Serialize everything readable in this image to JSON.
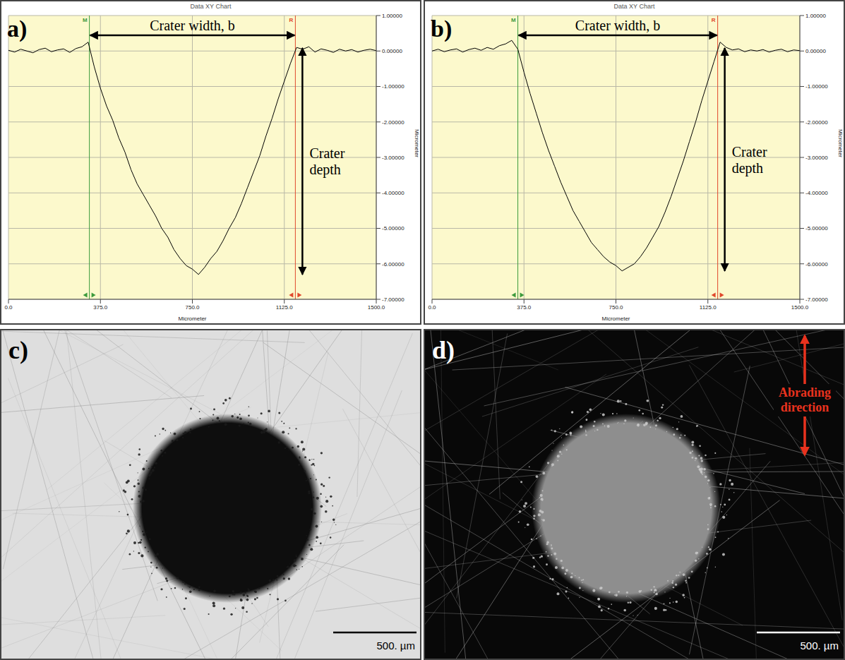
{
  "chart_data": [
    {
      "type": "line",
      "panel": "a)",
      "title": "Data XY Chart",
      "x_label": "Micrometer",
      "y_label": "Micrometer",
      "annotations": [
        "Crater width, b",
        "Crater depth"
      ],
      "x": [
        0,
        25,
        50,
        75,
        100,
        125,
        150,
        175,
        200,
        225,
        250,
        275,
        300,
        325,
        350,
        375,
        400,
        425,
        450,
        475,
        500,
        525,
        550,
        575,
        600,
        625,
        650,
        675,
        700,
        725,
        750,
        775,
        800,
        825,
        850,
        875,
        900,
        925,
        950,
        975,
        1000,
        1025,
        1050,
        1075,
        1100,
        1125,
        1150,
        1175,
        1200,
        1225,
        1250,
        1275,
        1300,
        1325,
        1350,
        1375,
        1400,
        1425,
        1450,
        1475,
        1500
      ],
      "values": [
        0.02,
        -0.03,
        0.05,
        0.0,
        -0.05,
        0.04,
        0.08,
        -0.02,
        0.03,
        0.06,
        -0.04,
        0.07,
        0.12,
        0.25,
        -0.45,
        -1.05,
        -1.55,
        -1.95,
        -2.45,
        -2.85,
        -3.35,
        -3.75,
        -4.05,
        -4.35,
        -4.65,
        -5.0,
        -5.25,
        -5.6,
        -5.85,
        -6.05,
        -6.15,
        -6.3,
        -6.1,
        -5.85,
        -5.65,
        -5.35,
        -5.0,
        -4.7,
        -4.3,
        -3.85,
        -3.4,
        -2.95,
        -2.4,
        -1.9,
        -1.35,
        -0.85,
        -0.35,
        0.1,
        0.05,
        0.12,
        -0.03,
        0.06,
        0.02,
        -0.04,
        0.05,
        0.0,
        0.04,
        -0.03,
        0.02,
        0.05,
        0.01
      ],
      "color": "#000000",
      "xlim": [
        0,
        1500
      ],
      "xticks": [
        {
          "value": 0,
          "label": "0.0"
        },
        {
          "value": 375,
          "label": "375.0"
        },
        {
          "value": 750,
          "label": "750.0"
        },
        {
          "value": 1125,
          "label": "1125.0"
        },
        {
          "value": 1500,
          "label": "1500.0"
        }
      ],
      "ylim": [
        -7,
        1
      ],
      "yticks": [
        {
          "value": 1,
          "label": "1.00000"
        },
        {
          "value": 0,
          "label": "0.00000"
        },
        {
          "value": -1,
          "label": "-1.00000"
        },
        {
          "value": -2,
          "label": "-2.00000"
        },
        {
          "value": -3,
          "label": "-3.00000"
        },
        {
          "value": -4,
          "label": "-4.00000"
        },
        {
          "value": -5,
          "label": "-5.00000"
        },
        {
          "value": -6,
          "label": "-6.00000"
        },
        {
          "value": -7,
          "label": "-7.00000"
        }
      ],
      "grid": true,
      "cursors": [
        {
          "label": "M",
          "x": 330,
          "color": "#3c9a3c"
        },
        {
          "label": "R",
          "x": 1170,
          "color": "#e0482c"
        }
      ]
    },
    {
      "type": "line",
      "panel": "b)",
      "title": "Data XY Chart",
      "x_label": "Micrometer",
      "y_label": "Micrometer",
      "annotations": [
        "Crater width, b",
        "Crater depth"
      ],
      "x": [
        0,
        25,
        50,
        75,
        100,
        125,
        150,
        175,
        200,
        225,
        250,
        275,
        300,
        325,
        350,
        375,
        400,
        425,
        450,
        475,
        500,
        525,
        550,
        575,
        600,
        625,
        650,
        675,
        700,
        725,
        750,
        775,
        800,
        825,
        850,
        875,
        900,
        925,
        950,
        975,
        1000,
        1025,
        1050,
        1075,
        1100,
        1125,
        1150,
        1175,
        1200,
        1225,
        1250,
        1275,
        1300,
        1325,
        1350,
        1375,
        1400,
        1425,
        1450,
        1475,
        1500
      ],
      "values": [
        0.0,
        0.05,
        -0.02,
        0.03,
        0.06,
        -0.03,
        0.04,
        0.08,
        0.02,
        0.1,
        0.05,
        0.15,
        0.2,
        0.3,
        0.05,
        -0.6,
        -1.2,
        -1.75,
        -2.3,
        -2.8,
        -3.25,
        -3.7,
        -4.1,
        -4.5,
        -4.8,
        -5.1,
        -5.4,
        -5.6,
        -5.8,
        -5.95,
        -6.05,
        -6.2,
        -6.1,
        -6.0,
        -5.8,
        -5.55,
        -5.25,
        -4.95,
        -4.55,
        -4.1,
        -3.6,
        -3.1,
        -2.55,
        -2.0,
        -1.4,
        -0.85,
        -0.3,
        0.25,
        0.1,
        0.03,
        0.06,
        -0.02,
        0.03,
        0.0,
        0.04,
        -0.03,
        0.02,
        0.05,
        -0.02,
        0.03,
        0.01
      ],
      "color": "#000000",
      "xlim": [
        0,
        1500
      ],
      "xticks": [
        {
          "value": 0,
          "label": "0.0"
        },
        {
          "value": 375,
          "label": "375.0"
        },
        {
          "value": 750,
          "label": "750.0"
        },
        {
          "value": 1125,
          "label": "1125.0"
        },
        {
          "value": 1500,
          "label": "1500.0"
        }
      ],
      "ylim": [
        -7,
        1
      ],
      "yticks": [
        {
          "value": 1,
          "label": "1.00000"
        },
        {
          "value": 0,
          "label": "0.00000"
        },
        {
          "value": -1,
          "label": "-1.00000"
        },
        {
          "value": -2,
          "label": "-2.00000"
        },
        {
          "value": -3,
          "label": "-3.00000"
        },
        {
          "value": -4,
          "label": "-4.00000"
        },
        {
          "value": -5,
          "label": "-5.00000"
        },
        {
          "value": -6,
          "label": "-6.00000"
        },
        {
          "value": -7,
          "label": "-7.00000"
        }
      ],
      "grid": true,
      "cursors": [
        {
          "label": "M",
          "x": 350,
          "color": "#3c9a3c"
        },
        {
          "label": "R",
          "x": 1165,
          "color": "#e0482c"
        }
      ]
    }
  ],
  "micrographs": [
    {
      "panel": "c)",
      "scale_bar": "500. µm"
    },
    {
      "panel": "d)",
      "scale_bar": "500. µm",
      "annotation": "Abrading direction"
    }
  ]
}
